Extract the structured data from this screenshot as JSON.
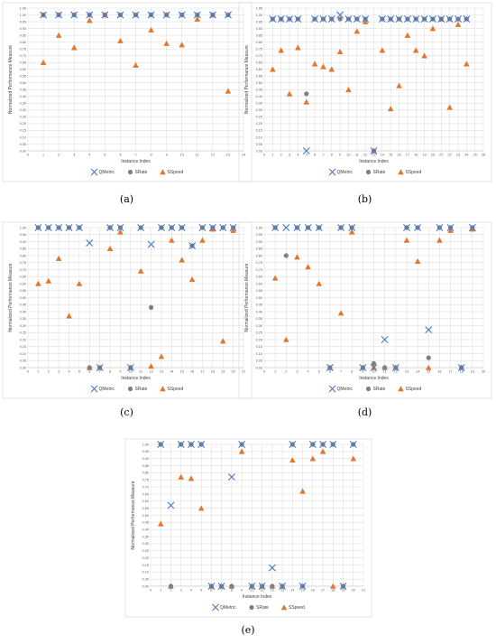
{
  "legend": [
    {
      "name": "QMetric",
      "color": "#4a7bc4",
      "marker": "x"
    },
    {
      "name": "SRate",
      "color": "#7f7f7f",
      "marker": "circle"
    },
    {
      "name": "SSpeed",
      "color": "#e0782f",
      "marker": "triangle"
    }
  ],
  "chart_data": [
    {
      "type": "scatter",
      "caption": "(a)",
      "xlabel": "Instance Index",
      "ylabel": "Normalized Performance Measure",
      "xlim": [
        0,
        14
      ],
      "ylim": [
        0,
        1.05
      ],
      "ystep": 0.05,
      "grid": true,
      "legend_position": "bottom",
      "x": [
        1,
        2,
        3,
        4,
        5,
        6,
        7,
        8,
        9,
        10,
        11,
        12,
        13
      ],
      "series": [
        {
          "name": "QMetric",
          "values": [
            1,
            1,
            1,
            1,
            1,
            1,
            1,
            1,
            1,
            1,
            1,
            1,
            1
          ]
        },
        {
          "name": "SRate",
          "values": [
            1,
            1,
            1,
            1,
            1,
            1,
            1,
            1,
            1,
            1,
            1,
            1,
            1
          ]
        },
        {
          "name": "SSpeed",
          "values": [
            0.65,
            0.85,
            0.76,
            0.96,
            1,
            0.81,
            0.63,
            0.89,
            0.79,
            0.78,
            0.97,
            1,
            0.44
          ]
        }
      ]
    },
    {
      "type": "scatter",
      "caption": "(b)",
      "xlabel": "Instance Index",
      "ylabel": "Normalized Performance Measure",
      "xlim": [
        0,
        26
      ],
      "ylim": [
        0,
        1.05
      ],
      "ystep": 0.05,
      "grid": true,
      "legend_position": "bottom",
      "x": [
        1,
        2,
        3,
        4,
        5,
        6,
        7,
        8,
        9,
        10,
        11,
        12,
        13,
        14,
        15,
        16,
        17,
        18,
        19,
        20,
        21,
        22,
        23,
        24
      ],
      "series": [
        {
          "name": "QMetric",
          "values": [
            0.97,
            0.97,
            0.97,
            0.97,
            0,
            0.97,
            0.97,
            0.97,
            1,
            0.97,
            0.97,
            0.97,
            0,
            0.97,
            0.97,
            0.97,
            0.97,
            0.97,
            0.97,
            0.97,
            0.97,
            0.97,
            0.97,
            0.97
          ]
        },
        {
          "name": "SRate",
          "values": [
            0.97,
            0.97,
            0.97,
            0.97,
            0.42,
            0.97,
            0.97,
            0.97,
            0.97,
            0.97,
            0.97,
            0.97,
            0,
            0.97,
            0.97,
            0.97,
            0.97,
            0.97,
            0.97,
            0.97,
            0.97,
            0.97,
            0.97,
            0.97
          ]
        },
        {
          "name": "SSpeed",
          "values": [
            0.6,
            0.74,
            0.42,
            0.76,
            0.36,
            0.64,
            0.62,
            0.6,
            0.73,
            0.45,
            0.88,
            0.95,
            0,
            0.74,
            0.31,
            0.48,
            0.85,
            0.74,
            0.7,
            0.9,
            0.97,
            0.32,
            0.93,
            0.64
          ]
        }
      ]
    },
    {
      "type": "scatter",
      "caption": "(c)",
      "xlabel": "Instance Index",
      "ylabel": "Normalized Performance Measure",
      "xlim": [
        0,
        21
      ],
      "ylim": [
        0,
        1
      ],
      "ystep": 0.05,
      "grid": true,
      "legend_position": "bottom",
      "x": [
        1,
        2,
        3,
        4,
        5,
        6,
        7,
        8,
        9,
        10,
        11,
        12,
        13,
        14,
        15,
        16,
        17,
        18,
        19,
        20
      ],
      "series": [
        {
          "name": "QMetric",
          "values": [
            1,
            1,
            1,
            1,
            1,
            0.89,
            0,
            1,
            1,
            0,
            1,
            0.88,
            1,
            1,
            1,
            0.87,
            1,
            1,
            1,
            1
          ]
        },
        {
          "name": "SRate",
          "values": [
            1,
            1,
            1,
            1,
            1,
            0,
            0,
            1,
            1,
            0,
            1,
            0.43,
            1,
            1,
            1,
            0.87,
            1,
            1,
            1,
            1
          ]
        },
        {
          "name": "SSpeed",
          "values": [
            0.6,
            0.62,
            0.78,
            0.37,
            0.6,
            0,
            0,
            0.85,
            0.97,
            0,
            0.69,
            0.01,
            0.08,
            0.91,
            0.77,
            0.63,
            0.91,
            0.99,
            0.19,
            0.98
          ]
        }
      ]
    },
    {
      "type": "scatter",
      "caption": "(d)",
      "xlabel": "Instance Index",
      "ylabel": "Normalized Performance Measure",
      "xlim": [
        0,
        20
      ],
      "ylim": [
        0,
        1
      ],
      "ystep": 0.05,
      "grid": true,
      "legend_position": "bottom",
      "x": [
        1,
        2,
        3,
        4,
        5,
        6,
        7,
        8,
        9,
        10,
        11,
        12,
        13,
        14,
        15,
        16,
        17,
        18,
        19
      ],
      "series": [
        {
          "name": "QMetric",
          "values": [
            1,
            1,
            1,
            1,
            1,
            0,
            1,
            1,
            0,
            0,
            0.2,
            0,
            1,
            1,
            0.27,
            1,
            1,
            0,
            1
          ]
        },
        {
          "name": "SRate",
          "values": [
            1,
            0.8,
            1,
            1,
            1,
            0,
            1,
            1,
            0,
            0.03,
            0,
            0,
            1,
            1,
            0.07,
            1,
            1,
            0,
            1
          ]
        },
        {
          "name": "SSpeed",
          "values": [
            0.64,
            0.2,
            0.79,
            0.72,
            0.6,
            0,
            0.39,
            0.97,
            0,
            0,
            0,
            0,
            0.91,
            0.76,
            0,
            0.91,
            0.98,
            0,
            0.99
          ]
        }
      ]
    },
    {
      "type": "scatter",
      "caption": "(e)",
      "xlabel": "Instance Index",
      "ylabel": "Normalized Performance Measure",
      "xlim": [
        0,
        21
      ],
      "ylim": [
        0,
        1
      ],
      "ystep": 0.05,
      "grid": true,
      "legend_position": "bottom",
      "x": [
        1,
        2,
        3,
        4,
        5,
        6,
        7,
        8,
        9,
        10,
        11,
        12,
        13,
        14,
        15,
        16,
        17,
        18,
        19,
        20
      ],
      "series": [
        {
          "name": "QMetric",
          "values": [
            1,
            0.57,
            1,
            1,
            1,
            0,
            0,
            0.77,
            1,
            0,
            0,
            0.13,
            0,
            1,
            0,
            1,
            1,
            1,
            0,
            1
          ]
        },
        {
          "name": "SRate",
          "values": [
            1,
            0,
            1,
            1,
            1,
            0,
            0,
            0,
            1,
            0,
            0,
            0,
            0,
            1,
            0,
            1,
            1,
            1,
            0,
            1
          ]
        },
        {
          "name": "SSpeed",
          "values": [
            0.44,
            0,
            0.77,
            0.76,
            0.55,
            0,
            0,
            0,
            0.95,
            0,
            0,
            0,
            0,
            0.89,
            0.67,
            0.9,
            0.95,
            0,
            0,
            0.9
          ]
        }
      ]
    }
  ]
}
